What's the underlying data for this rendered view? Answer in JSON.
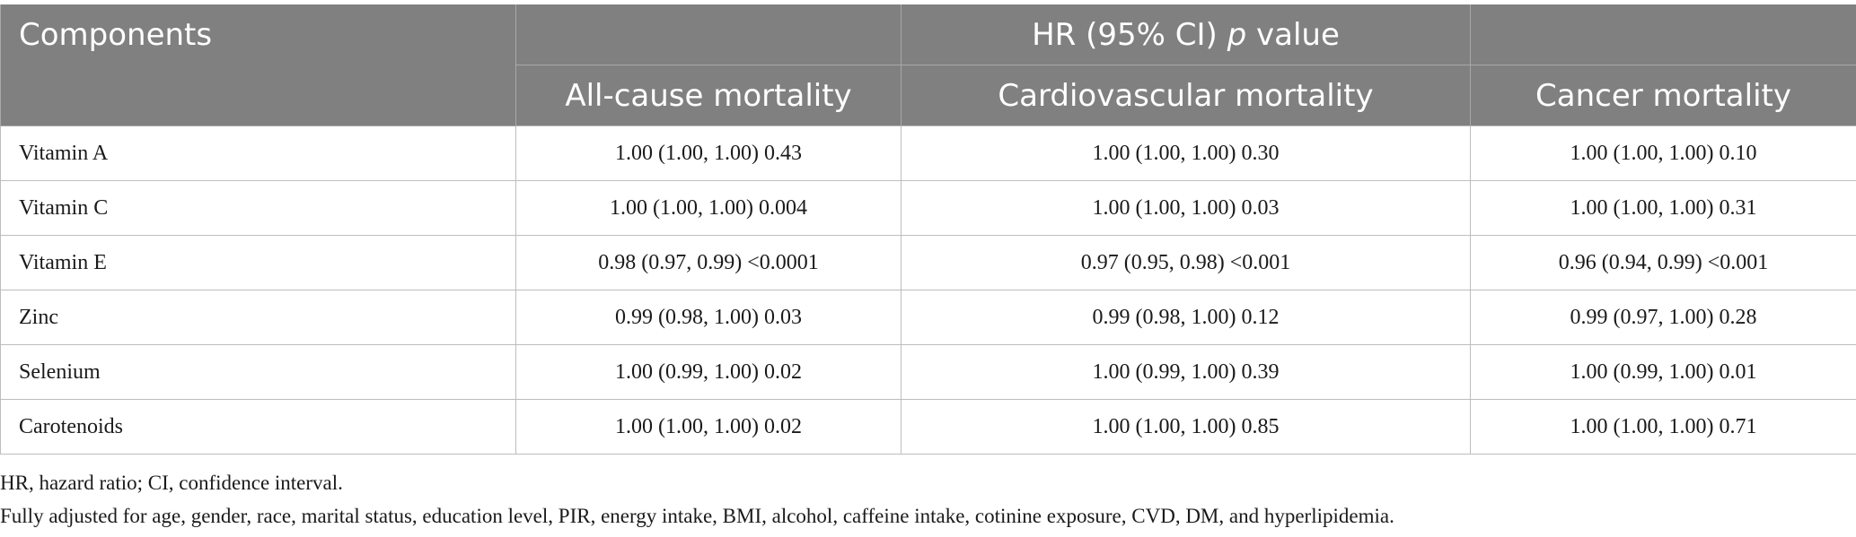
{
  "header": {
    "components": "Components",
    "group_label_prefix": "HR (95% CI) ",
    "group_label_italic": "p",
    "group_label_suffix": " value",
    "columns": [
      "All-cause mortality",
      "Cardiovascular mortality",
      "Cancer mortality"
    ]
  },
  "rows": [
    {
      "label": "Vitamin A",
      "values": [
        "1.00 (1.00, 1.00) 0.43",
        "1.00 (1.00, 1.00) 0.30",
        "1.00 (1.00, 1.00) 0.10"
      ]
    },
    {
      "label": "Vitamin C",
      "values": [
        "1.00 (1.00, 1.00) 0.004",
        "1.00 (1.00, 1.00) 0.03",
        "1.00 (1.00, 1.00) 0.31"
      ]
    },
    {
      "label": "Vitamin E",
      "values": [
        "0.98 (0.97, 0.99) <0.0001",
        "0.97 (0.95, 0.98) <0.001",
        "0.96 (0.94, 0.99) <0.001"
      ]
    },
    {
      "label": "Zinc",
      "values": [
        "0.99 (0.98, 1.00) 0.03",
        "0.99 (0.98, 1.00) 0.12",
        "0.99 (0.97, 1.00) 0.28"
      ]
    },
    {
      "label": "Selenium",
      "values": [
        "1.00 (0.99, 1.00) 0.02",
        "1.00 (0.99, 1.00) 0.39",
        "1.00 (0.99, 1.00) 0.01"
      ]
    },
    {
      "label": "Carotenoids",
      "values": [
        "1.00 (1.00, 1.00) 0.02",
        "1.00 (1.00, 1.00) 0.85",
        "1.00 (1.00, 1.00) 0.71"
      ]
    }
  ],
  "footnotes": [
    "HR, hazard ratio; CI, confidence interval.",
    "Fully adjusted for age, gender, race, marital status, education level, PIR, energy intake, BMI, alcohol, caffeine intake, cotinine exposure, CVD, DM, and hyperlipidemia."
  ]
}
